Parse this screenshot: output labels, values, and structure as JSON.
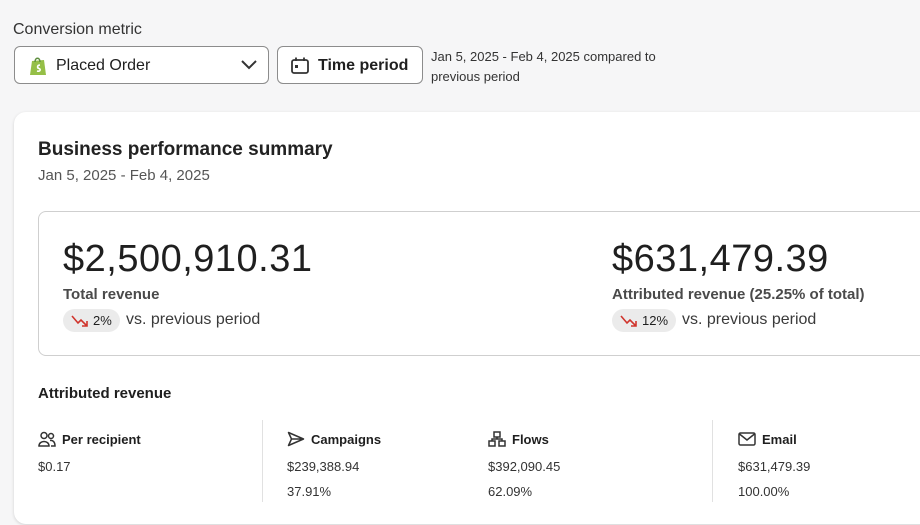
{
  "filters": {
    "metric_label": "Conversion metric",
    "metric": "Placed Order",
    "time_button": "Time period",
    "range_text": "Jan 5, 2025 - Feb 4, 2025 compared to previous period"
  },
  "summary": {
    "title": "Business performance summary",
    "date_range": "Jan 5, 2025 - Feb 4, 2025",
    "kpis": [
      {
        "value": "$2,500,910.31",
        "label": "Total revenue",
        "change": "2%",
        "comparison": "vs. previous period"
      },
      {
        "value": "$631,479.39",
        "label": "Attributed revenue (25.25% of total)",
        "change": "12%",
        "comparison": "vs. previous period"
      }
    ]
  },
  "attributed": {
    "title": "Attributed revenue",
    "columns": [
      {
        "label": "Per recipient",
        "value": "$0.17"
      },
      {
        "label": "Campaigns",
        "value": "$239,388.94",
        "share": "37.91%"
      },
      {
        "label": "Flows",
        "value": "$392,090.45",
        "share": "62.09%"
      },
      {
        "label": "Email",
        "value": "$631,479.39",
        "share": "100.00%"
      }
    ]
  }
}
